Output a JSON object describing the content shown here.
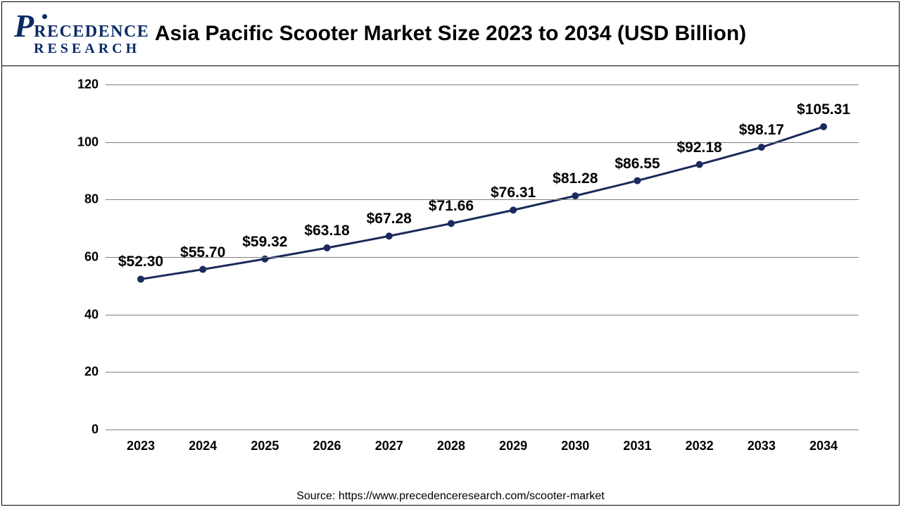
{
  "logo": {
    "top_first": "P",
    "top_rest": "RECEDENCE",
    "sub": "RESEARCH"
  },
  "title": "Asia Pacific Scooter Market Size 2023 to 2034 (USD Billion)",
  "source": "Source: https://www.precedenceresearch.com/scooter-market",
  "chart": {
    "type": "line",
    "background_color": "#ffffff",
    "grid_color": "#808080",
    "line_color": "#1a2a5c",
    "line_width": 3,
    "marker_style": "circle",
    "marker_size": 5,
    "marker_color": "#1a2a5c",
    "title_fontsize": 30,
    "tick_fontsize": 18,
    "datalabel_fontsize": 21,
    "font_weight": "700",
    "ylim": [
      0,
      120
    ],
    "ytick_step": 20,
    "yticks": [
      0,
      20,
      40,
      60,
      80,
      100,
      120
    ],
    "years": [
      "2023",
      "2024",
      "2025",
      "2026",
      "2027",
      "2028",
      "2029",
      "2030",
      "2031",
      "2032",
      "2033",
      "2034"
    ],
    "values": [
      52.3,
      55.7,
      59.32,
      63.18,
      67.28,
      71.66,
      76.31,
      81.28,
      86.55,
      92.18,
      98.17,
      105.31
    ],
    "labels": [
      "$52.30",
      "$55.70",
      "$59.32",
      "$63.18",
      "$67.28",
      "$71.66",
      "$76.31",
      "$81.28",
      "$86.55",
      "$92.18",
      "$98.17",
      "$105.31"
    ]
  }
}
